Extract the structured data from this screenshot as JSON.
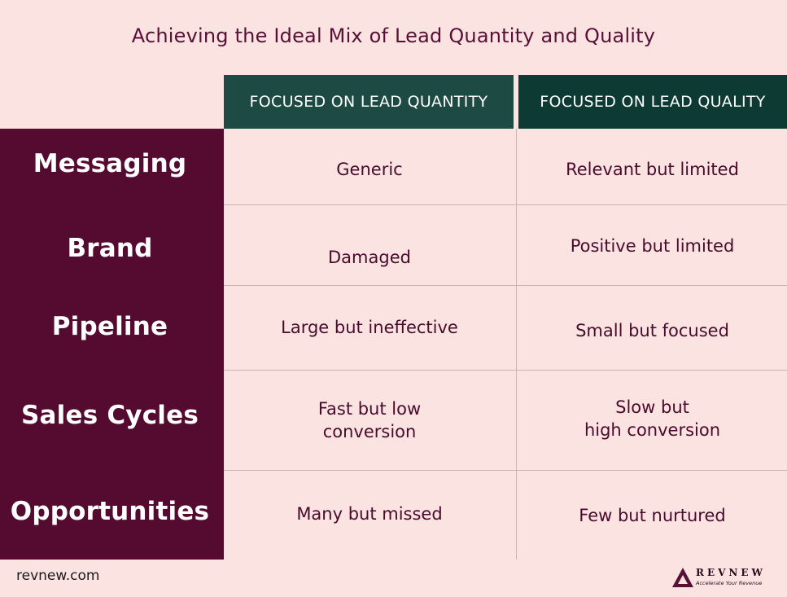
{
  "title": "Achieving the Ideal Mix of Lead Quantity and Quality",
  "columns": {
    "quantity": "FOCUSED ON LEAD QUANTITY",
    "quality": "FOCUSED ON LEAD QUALITY"
  },
  "rows": [
    {
      "label": "Messaging",
      "quantity": [
        "Generic"
      ],
      "quality": [
        "Relevant but limited"
      ]
    },
    {
      "label": "Brand",
      "quantity": [
        "Damaged"
      ],
      "quality": [
        "Positive but limited"
      ]
    },
    {
      "label": "Pipeline",
      "quantity": [
        "Large but ineffective"
      ],
      "quality": [
        "Small but focused"
      ]
    },
    {
      "label": "Sales Cycles",
      "quantity": [
        "Fast but low",
        "conversion"
      ],
      "quality": [
        "Slow but",
        "high conversion"
      ]
    },
    {
      "label": "Opportunities",
      "quantity": [
        "Many but missed"
      ],
      "quality": [
        "Few but nurtured"
      ]
    }
  ],
  "footer": {
    "url": "revnew.com",
    "logo_name": "REVNEW",
    "logo_tagline": "Accelerate Your Revenue"
  },
  "colors": {
    "background": "#fbe3e2",
    "row_band": "#550a30",
    "header_quantity": "#1d4a42",
    "header_quality": "#0d3b33",
    "text": "#4a0a2c"
  }
}
